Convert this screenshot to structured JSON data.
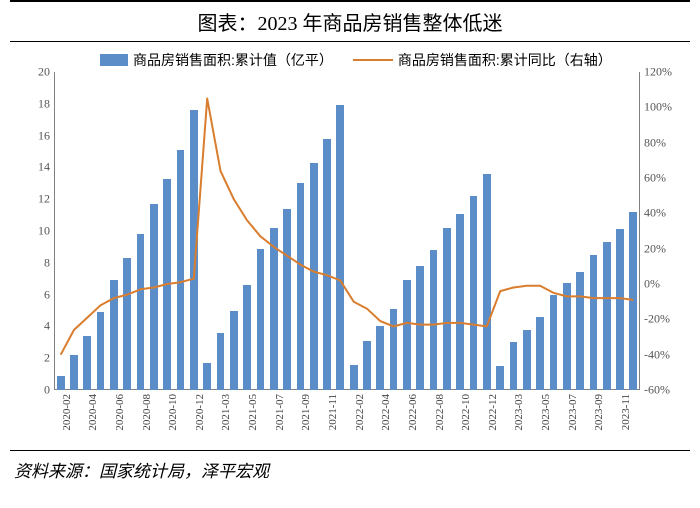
{
  "title": "图表：2023 年商品房销售整体低迷",
  "source": "资料来源：国家统计局，泽平宏观",
  "chart": {
    "type": "bar+line",
    "background_color": "#ffffff",
    "legend": {
      "bar_label": "商品房销售面积:累计值（亿平）",
      "line_label": "商品房销售面积:累计同比（右轴）"
    },
    "bar_color": "#5b8ec9",
    "line_color": "#d97d2e",
    "line_width": 2,
    "bar_width_ratio": 0.58,
    "y_left": {
      "min": 0,
      "max": 20,
      "step": 2,
      "ticks": [
        0,
        2,
        4,
        6,
        8,
        10,
        12,
        14,
        16,
        18,
        20
      ]
    },
    "y_right": {
      "min": -60,
      "max": 120,
      "step": 20,
      "ticks": [
        -60,
        -40,
        -20,
        0,
        20,
        40,
        60,
        80,
        100,
        120
      ],
      "suffix": "%"
    },
    "axis_color": "#808080",
    "tick_fontsize": 12,
    "xlabel_fontsize": 11,
    "xlabel_rotation": -90,
    "categories": [
      "2020-02",
      "2020-03",
      "2020-04",
      "2020-05",
      "2020-06",
      "2020-07",
      "2020-08",
      "2020-09",
      "2020-10",
      "2020-11",
      "2020-12",
      "2021-02",
      "2021-03",
      "2021-04",
      "2021-05",
      "2021-06",
      "2021-07",
      "2021-08",
      "2021-09",
      "2021-10",
      "2021-11",
      "2021-12",
      "2022-02",
      "2022-03",
      "2022-04",
      "2022-05",
      "2022-06",
      "2022-07",
      "2022-08",
      "2022-09",
      "2022-10",
      "2022-11",
      "2022-12",
      "2023-02",
      "2023-03",
      "2023-04",
      "2023-05",
      "2023-06",
      "2023-07",
      "2023-08",
      "2023-09",
      "2023-10",
      "2023-11",
      "2023-12"
    ],
    "x_tick_labels": [
      "2020-02",
      "",
      "2020-04",
      "",
      "2020-06",
      "",
      "2020-08",
      "",
      "2020-10",
      "",
      "2020-12",
      "",
      "2021-03",
      "",
      "2021-05",
      "",
      "2021-07",
      "",
      "2021-09",
      "",
      "2021-11",
      "",
      "2022-02",
      "",
      "2022-04",
      "",
      "2022-06",
      "",
      "2022-08",
      "",
      "2022-10",
      "",
      "2022-12",
      "",
      "2023-03",
      "",
      "2023-05",
      "",
      "2023-07",
      "",
      "2023-09",
      "",
      "2023-11",
      ""
    ],
    "bar_values": [
      0.9,
      2.2,
      3.4,
      4.9,
      6.9,
      8.3,
      9.8,
      11.7,
      13.3,
      15.1,
      17.6,
      1.7,
      3.6,
      5.0,
      6.6,
      8.9,
      10.2,
      11.4,
      13.0,
      14.3,
      15.8,
      17.9,
      1.6,
      3.1,
      4.0,
      5.1,
      6.9,
      7.8,
      8.8,
      10.2,
      11.1,
      12.2,
      13.6,
      1.5,
      3.0,
      3.8,
      4.6,
      6.0,
      6.7,
      7.4,
      8.5,
      9.3,
      10.1,
      11.2
    ],
    "line_values": [
      -40,
      -26,
      -19,
      -12,
      -8,
      -6,
      -3,
      -2,
      0,
      1,
      3,
      105,
      64,
      48,
      36,
      27,
      21,
      16,
      11,
      7,
      5,
      2,
      -10,
      -14,
      -21,
      -24,
      -22,
      -23,
      -23,
      -22,
      -22,
      -23,
      -24,
      -4,
      -2,
      -1,
      -1,
      -5,
      -7,
      -7,
      -8,
      -8,
      -8,
      -9
    ]
  }
}
